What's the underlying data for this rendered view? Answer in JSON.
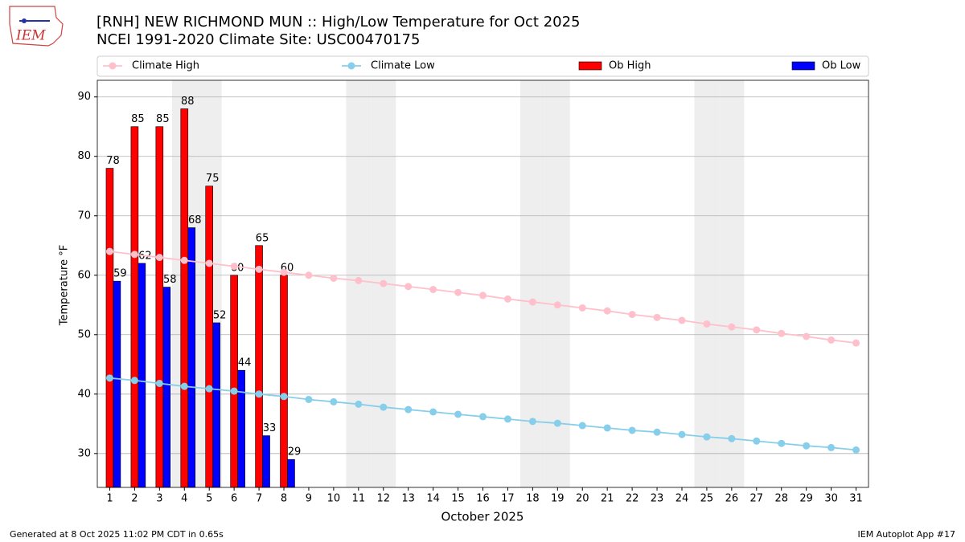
{
  "chart_data": {
    "type": "bar_line",
    "title": "[RNH] NEW RICHMOND MUN :: High/Low Temperature for Oct 2025",
    "subtitle": "NCEI 1991-2020 Climate Site: USC00470175",
    "y_label": "Temperature °F",
    "x_label": "October 2025",
    "logo_text": "IEM",
    "footer_left": "Generated at 8 Oct 2025 11:02 PM CDT in 0.65s",
    "footer_right": "IEM Autoplot App #17",
    "x": [
      1,
      2,
      3,
      4,
      5,
      6,
      7,
      8,
      9,
      10,
      11,
      12,
      13,
      14,
      15,
      16,
      17,
      18,
      19,
      20,
      21,
      22,
      23,
      24,
      25,
      26,
      27,
      28,
      29,
      30,
      31
    ],
    "xlim": [
      0.5,
      31.5
    ],
    "xticks": [
      1,
      2,
      3,
      4,
      5,
      6,
      7,
      8,
      9,
      10,
      11,
      12,
      13,
      14,
      15,
      16,
      17,
      18,
      19,
      20,
      21,
      22,
      23,
      24,
      25,
      26,
      27,
      28,
      29,
      30,
      31
    ],
    "ylim": [
      24.3,
      92.8
    ],
    "yticks": [
      30,
      40,
      50,
      60,
      70,
      80,
      90
    ],
    "grid": true,
    "legend": "top",
    "shaded_days": [
      4,
      5,
      11,
      12,
      18,
      19,
      25,
      26
    ],
    "shade_color": "#eeeeee",
    "series": [
      {
        "name": "Climate High",
        "kind": "line",
        "color": "#ffc0cb",
        "values": [
          64.0,
          63.5,
          63.0,
          62.5,
          62.0,
          61.5,
          61.0,
          60.5,
          60.0,
          59.5,
          59.1,
          58.6,
          58.1,
          57.6,
          57.1,
          56.6,
          56.0,
          55.5,
          55.0,
          54.5,
          54.0,
          53.4,
          52.9,
          52.4,
          51.8,
          51.3,
          50.8,
          50.2,
          49.7,
          49.1,
          48.6
        ]
      },
      {
        "name": "Climate Low",
        "kind": "line",
        "color": "#87ceeb",
        "values": [
          42.7,
          42.3,
          41.8,
          41.3,
          40.9,
          40.5,
          40.0,
          39.6,
          39.1,
          38.7,
          38.3,
          37.8,
          37.4,
          37.0,
          36.6,
          36.2,
          35.8,
          35.4,
          35.1,
          34.7,
          34.3,
          33.9,
          33.6,
          33.2,
          32.8,
          32.5,
          32.1,
          31.7,
          31.3,
          31.0,
          30.6
        ]
      },
      {
        "name": "Ob High",
        "kind": "bar",
        "color": "#ff0000",
        "values": [
          78,
          85,
          85,
          88,
          75,
          60,
          65,
          60,
          null,
          null,
          null,
          null,
          null,
          null,
          null,
          null,
          null,
          null,
          null,
          null,
          null,
          null,
          null,
          null,
          null,
          null,
          null,
          null,
          null,
          null,
          null
        ]
      },
      {
        "name": "Ob Low",
        "kind": "bar",
        "color": "#0000ff",
        "values": [
          59,
          62,
          58,
          68,
          52,
          44,
          33,
          29,
          null,
          null,
          null,
          null,
          null,
          null,
          null,
          null,
          null,
          null,
          null,
          null,
          null,
          null,
          null,
          null,
          null,
          null,
          null,
          null,
          null,
          null,
          null
        ]
      }
    ]
  }
}
